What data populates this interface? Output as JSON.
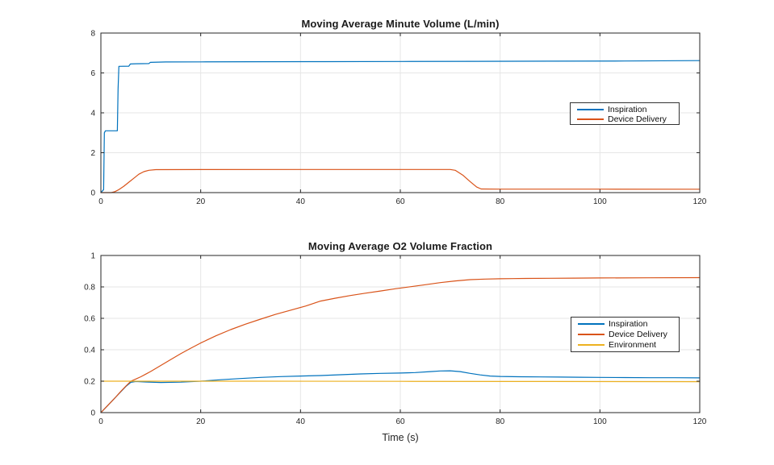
{
  "figure": {
    "background": "#ffffff",
    "axis_color": "#262626",
    "grid_color": "#e6e6e6",
    "title_color": "#1b1b1b"
  },
  "chart_data": [
    {
      "type": "line",
      "title": "Moving Average Minute Volume (L/min)",
      "xlabel": "",
      "ylabel": "",
      "xlim": [
        0,
        120
      ],
      "ylim": [
        0,
        8
      ],
      "xticks": [
        0,
        20,
        40,
        60,
        80,
        100,
        120
      ],
      "yticks": [
        0,
        2,
        4,
        6,
        8
      ],
      "grid": true,
      "legend_position": "right-center",
      "series": [
        {
          "name": "Inspiration",
          "color": "#0072BD",
          "points": [
            [
              0,
              0
            ],
            [
              0.55,
              0.15
            ],
            [
              0.7,
              3.0
            ],
            [
              0.9,
              3.1
            ],
            [
              3.3,
              3.1
            ],
            [
              3.45,
              5.2
            ],
            [
              3.6,
              6.33
            ],
            [
              5.6,
              6.34
            ],
            [
              5.9,
              6.45
            ],
            [
              7,
              6.46
            ],
            [
              9.6,
              6.47
            ],
            [
              9.9,
              6.53
            ],
            [
              13,
              6.55
            ],
            [
              20,
              6.555
            ],
            [
              30,
              6.56
            ],
            [
              45,
              6.565
            ],
            [
              60,
              6.575
            ],
            [
              75,
              6.58
            ],
            [
              90,
              6.59
            ],
            [
              105,
              6.6
            ],
            [
              120,
              6.62
            ]
          ]
        },
        {
          "name": "Device Delivery",
          "color": "#D95319",
          "points": [
            [
              0,
              0
            ],
            [
              2.1,
              0
            ],
            [
              2.8,
              0.05
            ],
            [
              3.6,
              0.15
            ],
            [
              4.6,
              0.32
            ],
            [
              5.6,
              0.52
            ],
            [
              6.6,
              0.72
            ],
            [
              7.6,
              0.92
            ],
            [
              8.6,
              1.05
            ],
            [
              9.6,
              1.12
            ],
            [
              11,
              1.15
            ],
            [
              20,
              1.155
            ],
            [
              40,
              1.158
            ],
            [
              60,
              1.159
            ],
            [
              70,
              1.16
            ],
            [
              71,
              1.12
            ],
            [
              72.5,
              0.88
            ],
            [
              74,
              0.55
            ],
            [
              75.3,
              0.28
            ],
            [
              76.2,
              0.18
            ],
            [
              80,
              0.175
            ],
            [
              100,
              0.172
            ],
            [
              120,
              0.17
            ]
          ]
        }
      ]
    },
    {
      "type": "line",
      "title": "Moving Average O2 Volume Fraction",
      "xlabel": "Time (s)",
      "ylabel": "",
      "xlim": [
        0,
        120
      ],
      "ylim": [
        0,
        1
      ],
      "xticks": [
        0,
        20,
        40,
        60,
        80,
        100,
        120
      ],
      "yticks": [
        0,
        0.2,
        0.4,
        0.6,
        0.8,
        1
      ],
      "grid": true,
      "legend_position": "right-center",
      "series": [
        {
          "name": "Inspiration",
          "color": "#0072BD",
          "points": [
            [
              0,
              0
            ],
            [
              1,
              0.033
            ],
            [
              2,
              0.066
            ],
            [
              3,
              0.1
            ],
            [
              4,
              0.133
            ],
            [
              5,
              0.166
            ],
            [
              6,
              0.193
            ],
            [
              7,
              0.198
            ],
            [
              9,
              0.195
            ],
            [
              12,
              0.192
            ],
            [
              16,
              0.194
            ],
            [
              20,
              0.2
            ],
            [
              24,
              0.209
            ],
            [
              28,
              0.217
            ],
            [
              32,
              0.224
            ],
            [
              36,
              0.229
            ],
            [
              40,
              0.233
            ],
            [
              44,
              0.236
            ],
            [
              48,
              0.241
            ],
            [
              52,
              0.246
            ],
            [
              56,
              0.25
            ],
            [
              60,
              0.252
            ],
            [
              63,
              0.255
            ],
            [
              66,
              0.261
            ],
            [
              68,
              0.265
            ],
            [
              70,
              0.266
            ],
            [
              72,
              0.261
            ],
            [
              74,
              0.25
            ],
            [
              76,
              0.24
            ],
            [
              78,
              0.233
            ],
            [
              80,
              0.23
            ],
            [
              84,
              0.228
            ],
            [
              88,
              0.227
            ],
            [
              92,
              0.226
            ],
            [
              96,
              0.225
            ],
            [
              100,
              0.224
            ],
            [
              105,
              0.223
            ],
            [
              110,
              0.222
            ],
            [
              115,
              0.222
            ],
            [
              120,
              0.221
            ]
          ]
        },
        {
          "name": "Device Delivery",
          "color": "#D95319",
          "points": [
            [
              0,
              0
            ],
            [
              1,
              0.033
            ],
            [
              2,
              0.066
            ],
            [
              3,
              0.1
            ],
            [
              4,
              0.135
            ],
            [
              5,
              0.168
            ],
            [
              6,
              0.2
            ],
            [
              7,
              0.214
            ],
            [
              8,
              0.228
            ],
            [
              9,
              0.245
            ],
            [
              10,
              0.262
            ],
            [
              12,
              0.3
            ],
            [
              14,
              0.338
            ],
            [
              16,
              0.375
            ],
            [
              18,
              0.41
            ],
            [
              20,
              0.443
            ],
            [
              23,
              0.488
            ],
            [
              26,
              0.528
            ],
            [
              29,
              0.563
            ],
            [
              32,
              0.595
            ],
            [
              35,
              0.625
            ],
            [
              38,
              0.652
            ],
            [
              41,
              0.678
            ],
            [
              44,
              0.71
            ],
            [
              47,
              0.728
            ],
            [
              50,
              0.745
            ],
            [
              53,
              0.76
            ],
            [
              56,
              0.774
            ],
            [
              59,
              0.788
            ],
            [
              62,
              0.801
            ],
            [
              65,
              0.814
            ],
            [
              68,
              0.827
            ],
            [
              71,
              0.838
            ],
            [
              74,
              0.846
            ],
            [
              77,
              0.85
            ],
            [
              80,
              0.852
            ],
            [
              85,
              0.854
            ],
            [
              90,
              0.855
            ],
            [
              95,
              0.856
            ],
            [
              100,
              0.857
            ],
            [
              110,
              0.858
            ],
            [
              120,
              0.859
            ]
          ]
        },
        {
          "name": "Environment",
          "color": "#EDB120",
          "points": [
            [
              0,
              0.2
            ],
            [
              30,
              0.2
            ],
            [
              60,
              0.199
            ],
            [
              90,
              0.198
            ],
            [
              120,
              0.197
            ]
          ]
        }
      ]
    }
  ]
}
